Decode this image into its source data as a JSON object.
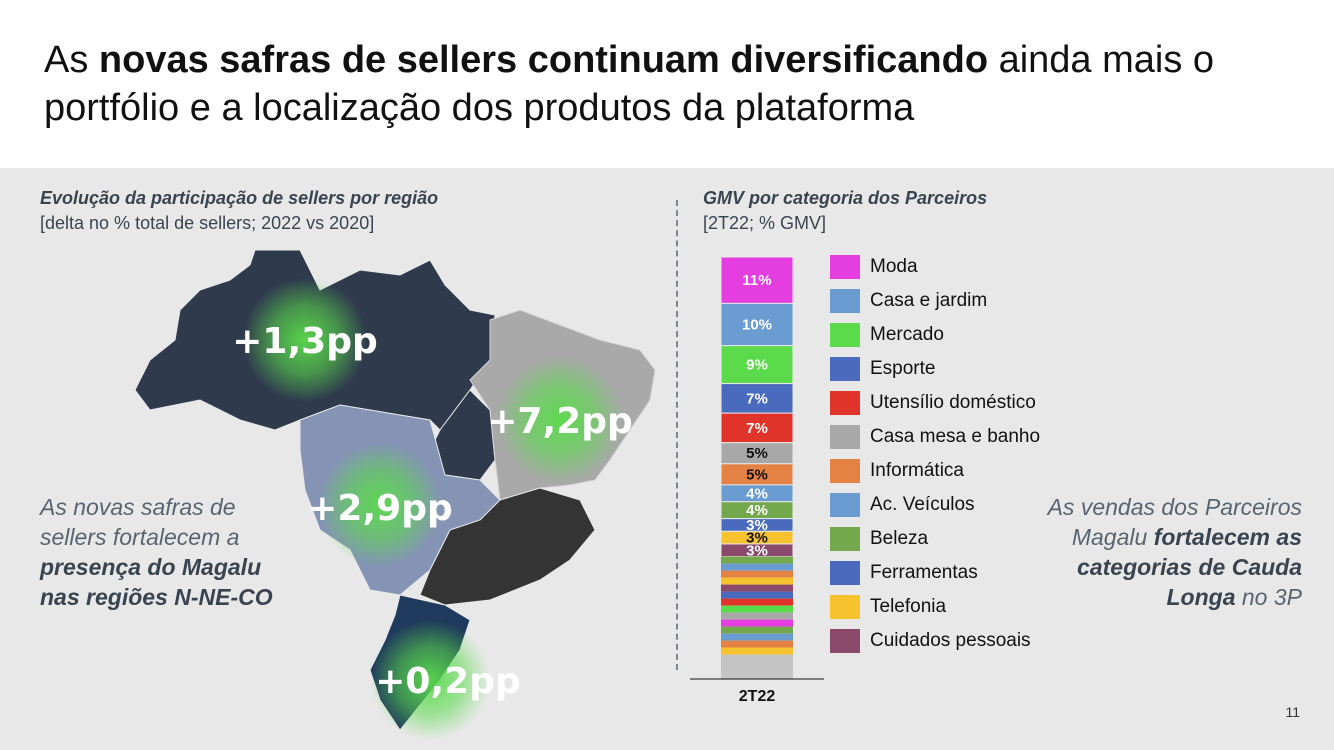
{
  "title": {
    "prefix": "As ",
    "bold": "novas safras de sellers continuam diversificando",
    "suffix": " ainda mais o portfólio e a localização dos produtos da plataforma"
  },
  "left_panel": {
    "title": "Evolução da participação de sellers por região",
    "note": "[delta no % total de sellers; 2022 vs 2020]",
    "text_plain": "As novas safras de sellers fortalecem a ",
    "text_bold": "presença do Magalu nas regiões N-NE-CO",
    "regions": [
      {
        "name": "N",
        "label": "+1,3pp"
      },
      {
        "name": "NE",
        "label": "+7,2pp"
      },
      {
        "name": "CO",
        "label": "+2,9pp"
      },
      {
        "name": "S",
        "label": "+0,2pp"
      }
    ]
  },
  "right_panel": {
    "title": "GMV por categoria dos Parceiros",
    "note": "[2T22; % GMV]",
    "text_plain1": "As vendas dos Parceiros Magalu ",
    "text_bold": "fortalecem as categorias de Cauda Longa",
    "text_plain2": " no 3P"
  },
  "chart_data": {
    "type": "bar",
    "stacked": true,
    "categories": [
      "2T22"
    ],
    "series": [
      {
        "name": "Moda",
        "values": [
          11
        ],
        "label": "11%",
        "color": "#e53ee0"
      },
      {
        "name": "Casa e jardim",
        "values": [
          10
        ],
        "label": "10%",
        "color": "#6a9bd1"
      },
      {
        "name": "Mercado",
        "values": [
          9
        ],
        "label": "9%",
        "color": "#5bdb4c"
      },
      {
        "name": "Esporte",
        "values": [
          7
        ],
        "label": "7%",
        "color": "#4a6abd"
      },
      {
        "name": "Utensílio doméstico",
        "values": [
          7
        ],
        "label": "7%",
        "color": "#e0342a"
      },
      {
        "name": "Casa mesa e banho",
        "values": [
          5
        ],
        "label": "5%",
        "color": "#a8a8a8"
      },
      {
        "name": "Informática",
        "values": [
          5
        ],
        "label": "5%",
        "color": "#e38243"
      },
      {
        "name": "Ac. Veículos",
        "values": [
          4
        ],
        "label": "4%",
        "color": "#6a9bd1"
      },
      {
        "name": "Beleza",
        "values": [
          4
        ],
        "label": "4%",
        "color": "#74a84d"
      },
      {
        "name": "Ferramentas",
        "values": [
          3
        ],
        "label": "3%",
        "color": "#4a6abd"
      },
      {
        "name": "Telefonia",
        "values": [
          3
        ],
        "label": "3%",
        "color": "#f6c22e"
      },
      {
        "name": "Cuidados pessoais",
        "values": [
          3
        ],
        "label": "3%",
        "color": "#8b4a6c"
      }
    ],
    "ylim": [
      0,
      100
    ]
  },
  "page_number": "11",
  "colors": {
    "panel_bg": "#e8e8e8",
    "region_dark": "#2f3b4d",
    "region_gray": "#a9a9a9",
    "region_blue": "#8593b5",
    "region_black": "#343434",
    "glow": "#5bdb4c"
  }
}
